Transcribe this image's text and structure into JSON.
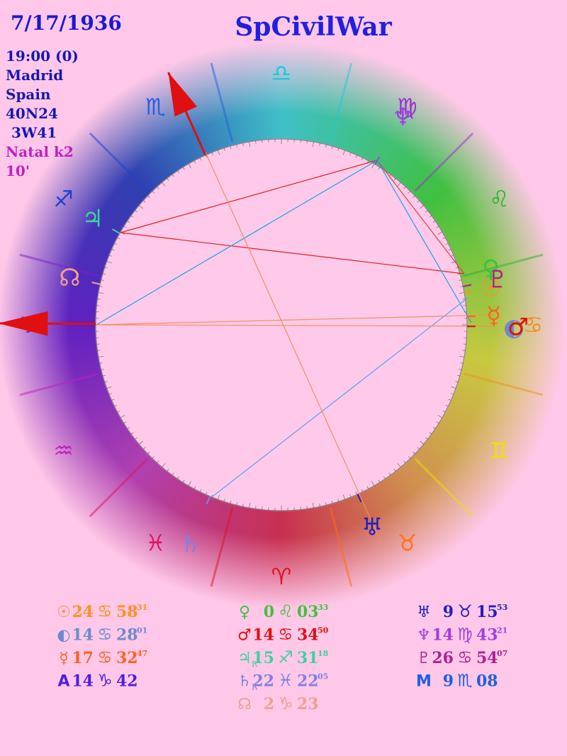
{
  "header": {
    "date": "7/17/1936",
    "title": "SpCivilWar"
  },
  "details": [
    {
      "text": "19:00 (0)",
      "color": "#1818b0"
    },
    {
      "text": "Madrid",
      "color": "#1818b0"
    },
    {
      "text": "Spain",
      "color": "#1818b0"
    },
    {
      "text": "40N24",
      "color": "#1818b0"
    },
    {
      "text": "3W41",
      "color": "#1818b0"
    },
    {
      "text": "Natal k2",
      "color": "#c020c0"
    },
    {
      "text": "10'",
      "color": "#c020c0"
    }
  ],
  "wheel": {
    "signs": [
      {
        "glyph": "♈",
        "color": "#e01020"
      },
      {
        "glyph": "♉",
        "color": "#ff7010"
      },
      {
        "glyph": "♊",
        "color": "#f0e000"
      },
      {
        "glyph": "♋",
        "color": "#f09020"
      },
      {
        "glyph": "♌",
        "color": "#30b030"
      },
      {
        "glyph": "♍",
        "color": "#a030d0"
      },
      {
        "glyph": "♎",
        "color": "#20c8d8"
      },
      {
        "glyph": "♏",
        "color": "#2060e0"
      },
      {
        "glyph": "♐",
        "color": "#2040d0"
      },
      {
        "glyph": "♑",
        "color": "#8020c0"
      },
      {
        "glyph": "♒",
        "color": "#c020c0"
      },
      {
        "glyph": "♓",
        "color": "#e01060"
      }
    ]
  },
  "positions": [
    [
      {
        "glyph": "☉",
        "degrees": "24",
        "sign": "♋",
        "minutes": "58",
        "seconds": "31",
        "color": "#ff9020"
      },
      {
        "glyph": "◐",
        "degrees": "14",
        "sign": "♋",
        "minutes": "28",
        "seconds": "01",
        "color": "#6a8ccc"
      },
      {
        "glyph": "☿",
        "degrees": "17",
        "sign": "♋",
        "minutes": "32",
        "seconds": "47",
        "color": "#ff6020"
      },
      {
        "glyph": "A",
        "degrees": "14",
        "sign": "♑",
        "minutes": "42",
        "color": "#5020e0"
      }
    ],
    [
      {
        "glyph": "♀",
        "degrees": "0",
        "sign": "♌",
        "minutes": "03",
        "seconds": "33",
        "color": "#40c040"
      },
      {
        "glyph": "♂",
        "degrees": "14",
        "sign": "♋",
        "minutes": "34",
        "seconds": "50",
        "color": "#e01010"
      },
      {
        "glyph": "♃",
        "retro": "R",
        "degrees": "15",
        "sign": "♐",
        "minutes": "31",
        "seconds": "18",
        "color": "#40d0a0"
      },
      {
        "glyph": "♄",
        "retro": "R",
        "degrees": "22",
        "sign": "♓",
        "minutes": "22",
        "seconds": "05",
        "color": "#8080e0"
      },
      {
        "glyph": "☊",
        "degrees": "2",
        "sign": "♑",
        "minutes": "23",
        "color": "#f0a090"
      }
    ],
    [
      {
        "glyph": "♅",
        "degrees": "9",
        "sign": "♉",
        "minutes": "15",
        "seconds": "53",
        "color": "#2020c0"
      },
      {
        "glyph": "♆",
        "degrees": "14",
        "sign": "♍",
        "minutes": "43",
        "seconds": "21",
        "color": "#a040e0"
      },
      {
        "glyph": "♇",
        "degrees": "26",
        "sign": "♋",
        "minutes": "54",
        "seconds": "07",
        "color": "#b02090"
      },
      {
        "glyph": "M",
        "degrees": "9",
        "sign": "♏",
        "minutes": "08",
        "color": "#2060e0"
      }
    ]
  ]
}
